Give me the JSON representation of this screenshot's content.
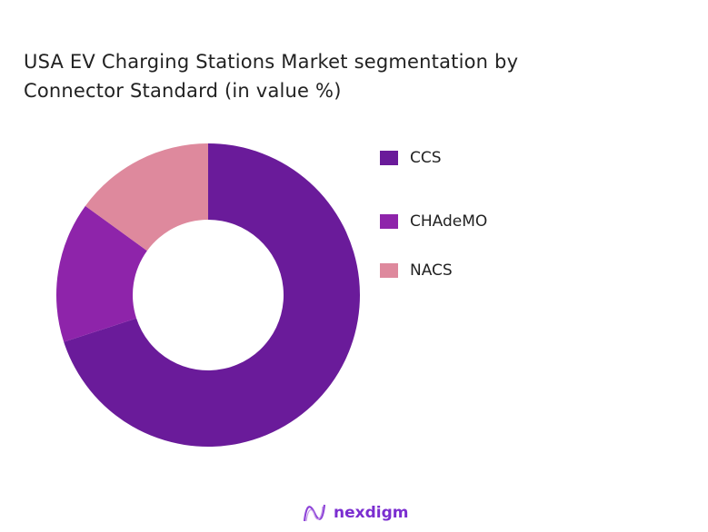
{
  "chart_data": {
    "type": "pie",
    "donut": true,
    "title": "USA EV Charging Stations Market segmentation by Connector Standard (in value %)",
    "title_lines": [
      "USA EV Charging Stations Market segmentation by",
      "Connector Standard (in value %)"
    ],
    "categories": [
      "CCS",
      "CHAdeMO",
      "NACS"
    ],
    "values": [
      70,
      15,
      15
    ],
    "colors": [
      "#6a1b9a",
      "#8e24aa",
      "#de899d"
    ],
    "legend_position": "right",
    "start_angle": "top",
    "direction": "clockwise"
  },
  "brand": {
    "name": "nexdigm"
  }
}
